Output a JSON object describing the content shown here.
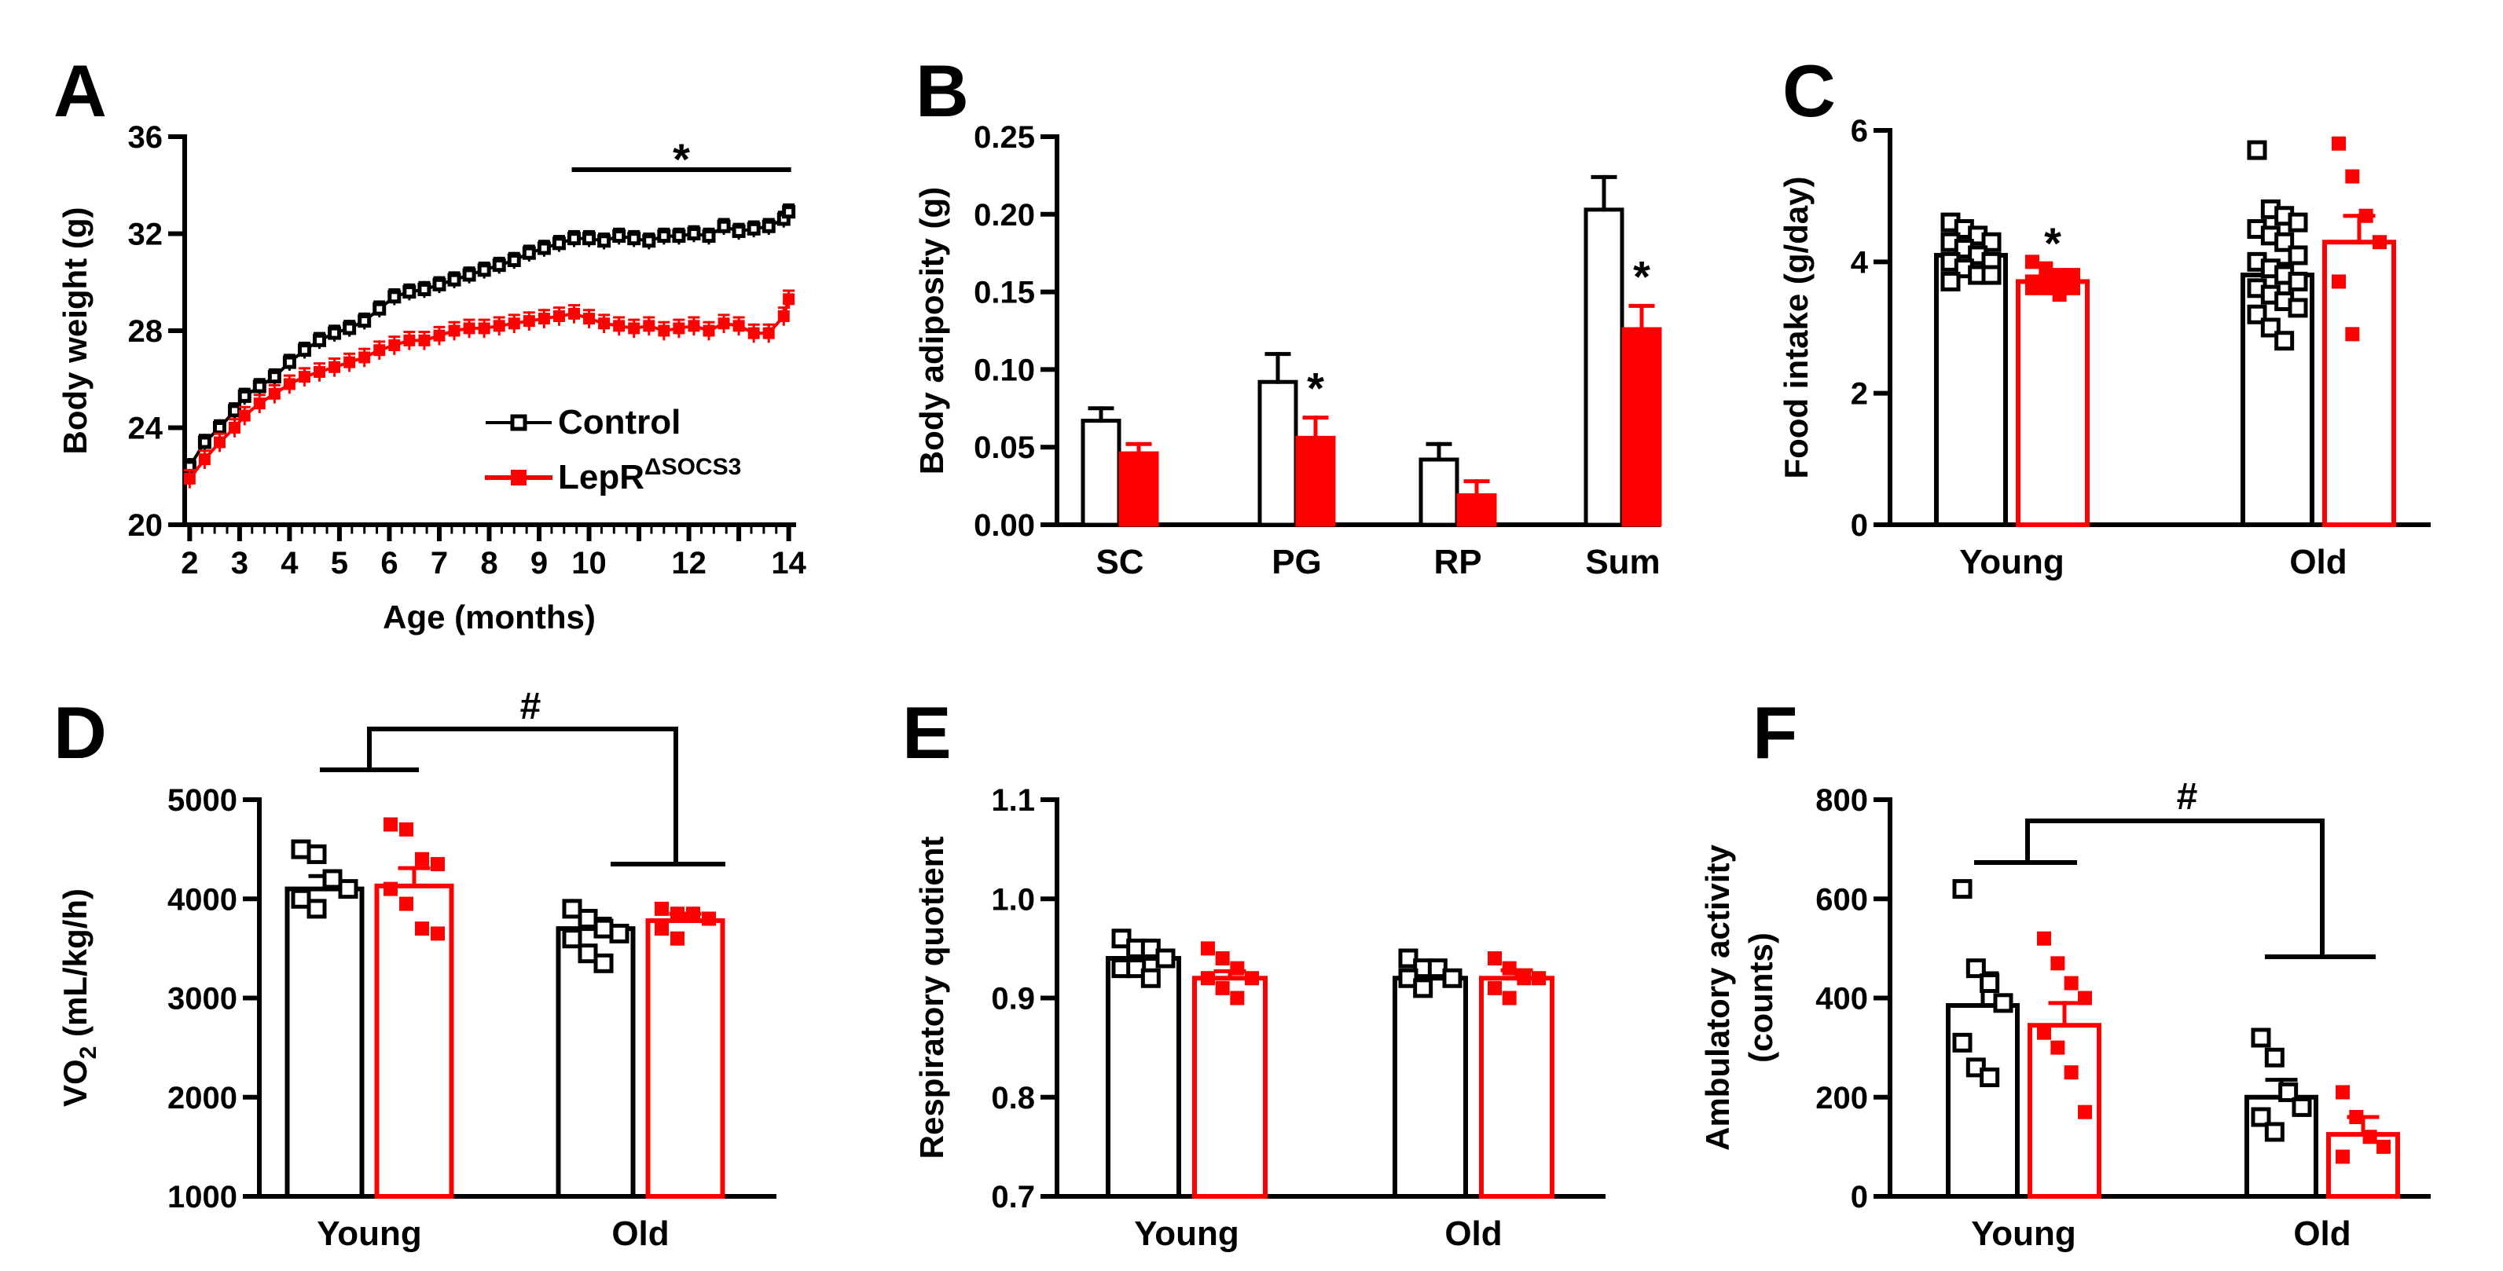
{
  "colors": {
    "control": "#000000",
    "mutant": "#ff0000",
    "background": "#ffffff"
  },
  "chart_data": [
    {
      "id": "A",
      "type": "line",
      "panel_label": "A",
      "xlabel": "Age (months)",
      "ylabel": "Body weight (g)",
      "ylim": [
        20,
        36
      ],
      "yticks": [
        "20",
        "24",
        "28",
        "32",
        "36"
      ],
      "xlim": [
        1.9,
        14.1
      ],
      "xticks_left": [
        "2",
        "3",
        "4",
        "5",
        "6",
        "7",
        "8",
        "9"
      ],
      "xticks_right": [
        "10",
        "12",
        "14"
      ],
      "legend": [
        {
          "name": "Control",
          "marker": "open-square"
        },
        {
          "name": "LepR",
          "superscript": "ΔSOCS3",
          "marker": "filled-square"
        }
      ],
      "annotations": [
        {
          "text": "*",
          "x_from": 9.7,
          "x_to": 14.0
        }
      ],
      "series": [
        {
          "name": "Control",
          "err": 0.3,
          "points": [
            [
              2.0,
              22.4
            ],
            [
              2.3,
              23.4
            ],
            [
              2.6,
              24.0
            ],
            [
              2.9,
              24.7
            ],
            [
              3.1,
              25.3
            ],
            [
              3.4,
              25.7
            ],
            [
              3.7,
              26.1
            ],
            [
              4.0,
              26.7
            ],
            [
              4.3,
              27.2
            ],
            [
              4.6,
              27.6
            ],
            [
              4.9,
              27.9
            ],
            [
              5.2,
              28.1
            ],
            [
              5.5,
              28.4
            ],
            [
              5.8,
              28.9
            ],
            [
              6.1,
              29.4
            ],
            [
              6.4,
              29.6
            ],
            [
              6.7,
              29.7
            ],
            [
              7.0,
              29.9
            ],
            [
              7.3,
              30.1
            ],
            [
              7.6,
              30.3
            ],
            [
              7.9,
              30.5
            ],
            [
              8.2,
              30.7
            ],
            [
              8.5,
              30.9
            ],
            [
              8.8,
              31.2
            ],
            [
              9.1,
              31.4
            ],
            [
              9.4,
              31.6
            ],
            [
              9.7,
              31.8
            ],
            [
              10.0,
              31.8
            ],
            [
              10.3,
              31.7
            ],
            [
              10.6,
              31.9
            ],
            [
              10.9,
              31.8
            ],
            [
              11.2,
              31.7
            ],
            [
              11.5,
              31.9
            ],
            [
              11.8,
              31.9
            ],
            [
              12.1,
              32.0
            ],
            [
              12.4,
              31.9
            ],
            [
              12.7,
              32.3
            ],
            [
              13.0,
              32.1
            ],
            [
              13.3,
              32.2
            ],
            [
              13.6,
              32.3
            ],
            [
              13.9,
              32.6
            ],
            [
              14.0,
              32.9
            ]
          ]
        },
        {
          "name": "LepR ΔSOCS3",
          "err": 0.35,
          "points": [
            [
              2.0,
              21.9
            ],
            [
              2.3,
              22.7
            ],
            [
              2.6,
              23.4
            ],
            [
              2.9,
              24.0
            ],
            [
              3.1,
              24.5
            ],
            [
              3.4,
              25.0
            ],
            [
              3.7,
              25.4
            ],
            [
              4.0,
              25.8
            ],
            [
              4.3,
              26.1
            ],
            [
              4.6,
              26.3
            ],
            [
              4.9,
              26.5
            ],
            [
              5.2,
              26.7
            ],
            [
              5.5,
              26.9
            ],
            [
              5.8,
              27.2
            ],
            [
              6.1,
              27.4
            ],
            [
              6.4,
              27.6
            ],
            [
              6.7,
              27.6
            ],
            [
              7.0,
              27.8
            ],
            [
              7.3,
              28.0
            ],
            [
              7.6,
              28.1
            ],
            [
              7.9,
              28.1
            ],
            [
              8.2,
              28.2
            ],
            [
              8.5,
              28.3
            ],
            [
              8.8,
              28.4
            ],
            [
              9.1,
              28.5
            ],
            [
              9.4,
              28.6
            ],
            [
              9.7,
              28.7
            ],
            [
              10.0,
              28.5
            ],
            [
              10.3,
              28.3
            ],
            [
              10.6,
              28.2
            ],
            [
              10.9,
              28.1
            ],
            [
              11.2,
              28.2
            ],
            [
              11.5,
              28.0
            ],
            [
              11.8,
              28.1
            ],
            [
              12.1,
              28.2
            ],
            [
              12.4,
              28.0
            ],
            [
              12.7,
              28.3
            ],
            [
              13.0,
              28.2
            ],
            [
              13.3,
              27.9
            ],
            [
              13.6,
              27.9
            ],
            [
              13.9,
              28.6
            ],
            [
              14.0,
              29.3
            ]
          ]
        }
      ]
    },
    {
      "id": "B",
      "type": "bar",
      "panel_label": "B",
      "xlabel": "",
      "ylabel": "Body adiposity (g)",
      "ylim": [
        0,
        0.25
      ],
      "yticks": [
        "0.00",
        "0.05",
        "0.10",
        "0.15",
        "0.20",
        "0.25"
      ],
      "categories": [
        "SC",
        "PG",
        "RP",
        "Sum"
      ],
      "series": [
        {
          "name": "Control",
          "values": [
            0.067,
            0.092,
            0.042,
            0.203
          ],
          "errors": [
            0.008,
            0.018,
            0.01,
            0.021
          ]
        },
        {
          "name": "LepR ΔSOCS3",
          "values": [
            0.046,
            0.056,
            0.019,
            0.126
          ],
          "errors": [
            0.006,
            0.013,
            0.009,
            0.015
          ]
        }
      ],
      "annotations": [
        {
          "text": "*",
          "category": "PG",
          "series": 1
        },
        {
          "text": "*",
          "category": "Sum",
          "series": 1
        }
      ]
    },
    {
      "id": "C",
      "type": "bar",
      "panel_label": "C",
      "xlabel": "",
      "ylabel": "Food intake (g/day)",
      "ylim": [
        0,
        6
      ],
      "yticks": [
        "0",
        "2",
        "4",
        "6"
      ],
      "categories": [
        "Young",
        "Old"
      ],
      "series": [
        {
          "name": "Control",
          "values": [
            4.1,
            3.8
          ],
          "errors": [
            0.1,
            0.17
          ],
          "points": [
            [
              4.6,
              4.5,
              4.4,
              4.3,
              4.3,
              4.2,
              4.1,
              4.0,
              4.0,
              3.9,
              3.8,
              3.8,
              3.7
            ],
            [
              5.7,
              4.8,
              4.7,
              4.6,
              4.5,
              4.4,
              4.3,
              4.1,
              4.0,
              3.9,
              3.8,
              3.7,
              3.6,
              3.5,
              3.4,
              3.3,
              3.2,
              3.0,
              2.8
            ]
          ]
        },
        {
          "name": "LepR ΔSOCS3",
          "values": [
            3.7,
            4.3
          ],
          "errors": [
            0.05,
            0.4
          ],
          "points": [
            [
              4.0,
              3.9,
              3.8,
              3.8,
              3.7,
              3.7,
              3.7,
              3.6,
              3.6,
              3.6,
              3.5
            ],
            [
              5.8,
              5.3,
              4.7,
              4.3,
              3.7,
              2.9
            ]
          ]
        }
      ],
      "annotations": [
        {
          "text": "*",
          "category": "Young",
          "series": 1
        }
      ]
    },
    {
      "id": "D",
      "type": "bar",
      "panel_label": "D",
      "xlabel": "",
      "ylabel": "VO",
      "ylabel_sub": "2",
      "ylabel_rest": " (mL/kg/h)",
      "ylim": [
        1000,
        5000
      ],
      "yticks": [
        "1000",
        "2000",
        "3000",
        "4000",
        "5000"
      ],
      "categories": [
        "Young",
        "Old"
      ],
      "series": [
        {
          "name": "Control",
          "values": [
            4100,
            3700
          ],
          "errors": [
            130,
            100
          ],
          "points": [
            [
              4500,
              4450,
              4200,
              4100,
              4000,
              3900
            ],
            [
              3900,
              3800,
              3700,
              3650,
              3600,
              3450,
              3350
            ]
          ]
        },
        {
          "name": "LepR ΔSOCS3",
          "values": [
            4130,
            3780
          ],
          "errors": [
            180,
            70
          ],
          "points": [
            [
              4750,
              4700,
              4400,
              4350,
              4100,
              3950,
              3700,
              3650
            ],
            [
              3900,
              3850,
              3850,
              3800,
              3700,
              3600
            ]
          ]
        }
      ],
      "annotations": [
        {
          "text": "#",
          "between": [
            "Young",
            "Old"
          ]
        }
      ]
    },
    {
      "id": "E",
      "type": "bar",
      "panel_label": "E",
      "xlabel": "",
      "ylabel": "Respiratory quotient",
      "ylim": [
        0.7,
        1.1
      ],
      "yticks": [
        "0.7",
        "0.8",
        "0.9",
        "1.0",
        "1.1"
      ],
      "categories": [
        "Young",
        "Old"
      ],
      "series": [
        {
          "name": "Control",
          "values": [
            0.94,
            0.92
          ],
          "errors": [
            0.008,
            0.006
          ],
          "points": [
            [
              0.96,
              0.95,
              0.95,
              0.94,
              0.93,
              0.93,
              0.92
            ],
            [
              0.94,
              0.93,
              0.93,
              0.92,
              0.92,
              0.91
            ]
          ]
        },
        {
          "name": "LepR ΔSOCS3",
          "values": [
            0.92,
            0.92
          ],
          "errors": [
            0.007,
            0.008
          ],
          "points": [
            [
              0.95,
              0.94,
              0.93,
              0.92,
              0.92,
              0.91,
              0.9
            ],
            [
              0.94,
              0.93,
              0.92,
              0.92,
              0.91,
              0.9
            ]
          ]
        }
      ]
    },
    {
      "id": "F",
      "type": "bar",
      "panel_label": "F",
      "xlabel": "",
      "ylabel": "Ambulatory activity",
      "ylabel_line2": "(counts)",
      "ylim": [
        0,
        800
      ],
      "yticks": [
        "0",
        "200",
        "400",
        "600",
        "800"
      ],
      "categories": [
        "Young",
        "Old"
      ],
      "series": [
        {
          "name": "Control",
          "values": [
            385,
            200
          ],
          "errors": [
            65,
            35
          ],
          "points": [
            [
              620,
              460,
              430,
              390,
              310,
              260,
              240
            ],
            [
              320,
              280,
              210,
              180,
              160,
              130
            ]
          ]
        },
        {
          "name": "LepR ΔSOCS3",
          "values": [
            345,
            125
          ],
          "errors": [
            45,
            35
          ],
          "points": [
            [
              520,
              470,
              430,
              400,
              330,
              300,
              250,
              170
            ],
            [
              210,
              160,
              120,
              100,
              80
            ]
          ]
        }
      ],
      "annotations": [
        {
          "text": "#",
          "between": [
            "Young",
            "Old"
          ]
        }
      ]
    }
  ]
}
